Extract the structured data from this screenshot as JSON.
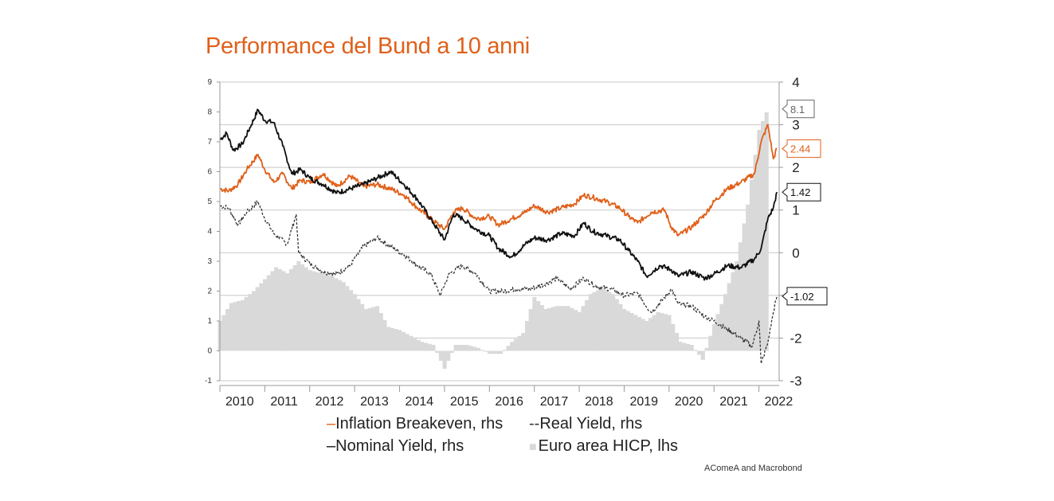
{
  "chart_data": {
    "type": "line",
    "title": "Performance del Bund a 10 anni",
    "source": "AComeA and Macrobond",
    "x_ticks": [
      "2010",
      "2011",
      "2012",
      "2013",
      "2014",
      "2015",
      "2016",
      "2017",
      "2018",
      "2019",
      "2020",
      "2021",
      "2022"
    ],
    "left_axis": {
      "ylim": [
        -1,
        9
      ],
      "ticks": [
        "9",
        "8",
        "7",
        "6",
        "5",
        "4",
        "3",
        "2",
        "1",
        "0",
        "-1"
      ]
    },
    "right_axis": {
      "ylim": [
        -3,
        4
      ],
      "ticks": [
        "4",
        "3",
        "2",
        "1",
        "0",
        "-1",
        "-2",
        "-3"
      ]
    },
    "legend": [
      {
        "label": "Inflation Breakeven, rhs",
        "marker": "–",
        "color": "#e0601a"
      },
      {
        "label": "Real Yield, rhs",
        "marker": "--",
        "color": "#333333"
      },
      {
        "label": "Nominal Yield, rhs",
        "marker": "–",
        "color": "#111111"
      },
      {
        "label": "Euro area HICP, lhs",
        "marker": "■",
        "color": "#d9d9d9"
      }
    ],
    "end_labels": [
      {
        "text": "8.1",
        "color": "#666666"
      },
      {
        "text": "2.44",
        "color": "#e0601a"
      },
      {
        "text": "1.42",
        "color": "#111111"
      },
      {
        "text": "-1.02",
        "color": "#111111"
      }
    ],
    "series": [
      {
        "name": "Euro area HICP, lhs",
        "axis": "left",
        "kind": "bar",
        "color": "#d9d9d9",
        "points": [
          [
            2010.0,
            1.0
          ],
          [
            2010.25,
            1.6
          ],
          [
            2010.5,
            1.7
          ],
          [
            2010.75,
            2.0
          ],
          [
            2011.0,
            2.4
          ],
          [
            2011.25,
            2.8
          ],
          [
            2011.5,
            2.6
          ],
          [
            2011.75,
            3.0
          ],
          [
            2012.0,
            2.7
          ],
          [
            2012.25,
            2.6
          ],
          [
            2012.5,
            2.5
          ],
          [
            2012.75,
            2.3
          ],
          [
            2013.0,
            1.9
          ],
          [
            2013.25,
            1.4
          ],
          [
            2013.5,
            1.5
          ],
          [
            2013.75,
            0.8
          ],
          [
            2014.0,
            0.7
          ],
          [
            2014.25,
            0.5
          ],
          [
            2014.5,
            0.3
          ],
          [
            2014.75,
            0.2
          ],
          [
            2015.0,
            -0.6
          ],
          [
            2015.25,
            0.2
          ],
          [
            2015.5,
            0.2
          ],
          [
            2015.75,
            0.1
          ],
          [
            2016.0,
            -0.1
          ],
          [
            2016.25,
            -0.1
          ],
          [
            2016.5,
            0.3
          ],
          [
            2016.75,
            0.6
          ],
          [
            2017.0,
            1.8
          ],
          [
            2017.25,
            1.4
          ],
          [
            2017.5,
            1.5
          ],
          [
            2017.75,
            1.5
          ],
          [
            2018.0,
            1.3
          ],
          [
            2018.25,
            1.9
          ],
          [
            2018.5,
            2.1
          ],
          [
            2018.75,
            1.9
          ],
          [
            2019.0,
            1.4
          ],
          [
            2019.25,
            1.2
          ],
          [
            2019.5,
            1.0
          ],
          [
            2019.75,
            1.3
          ],
          [
            2020.0,
            1.2
          ],
          [
            2020.25,
            0.3
          ],
          [
            2020.5,
            0.2
          ],
          [
            2020.75,
            -0.3
          ],
          [
            2021.0,
            0.9
          ],
          [
            2021.25,
            1.9
          ],
          [
            2021.5,
            3.0
          ],
          [
            2021.75,
            4.9
          ],
          [
            2022.0,
            7.4
          ],
          [
            2022.2,
            8.1
          ]
        ]
      },
      {
        "name": "Inflation Breakeven, rhs",
        "axis": "right",
        "kind": "line",
        "color": "#e0601a",
        "points": [
          [
            2010.0,
            1.5
          ],
          [
            2010.2,
            1.45
          ],
          [
            2010.4,
            1.6
          ],
          [
            2010.6,
            1.95
          ],
          [
            2010.85,
            2.3
          ],
          [
            2011.0,
            1.95
          ],
          [
            2011.2,
            1.65
          ],
          [
            2011.4,
            1.85
          ],
          [
            2011.6,
            1.5
          ],
          [
            2011.8,
            1.7
          ],
          [
            2012.0,
            1.65
          ],
          [
            2012.3,
            1.85
          ],
          [
            2012.6,
            1.55
          ],
          [
            2012.9,
            1.8
          ],
          [
            2013.2,
            1.55
          ],
          [
            2013.5,
            1.6
          ],
          [
            2013.8,
            1.5
          ],
          [
            2014.1,
            1.35
          ],
          [
            2014.4,
            1.05
          ],
          [
            2014.75,
            0.75
          ],
          [
            2015.0,
            0.55
          ],
          [
            2015.2,
            0.95
          ],
          [
            2015.4,
            1.05
          ],
          [
            2015.7,
            0.8
          ],
          [
            2016.0,
            0.85
          ],
          [
            2016.2,
            0.65
          ],
          [
            2016.5,
            0.8
          ],
          [
            2016.8,
            0.95
          ],
          [
            2017.0,
            1.1
          ],
          [
            2017.3,
            0.95
          ],
          [
            2017.6,
            1.05
          ],
          [
            2017.9,
            1.15
          ],
          [
            2018.1,
            1.35
          ],
          [
            2018.3,
            1.3
          ],
          [
            2018.6,
            1.2
          ],
          [
            2018.9,
            1.05
          ],
          [
            2019.1,
            0.85
          ],
          [
            2019.3,
            0.7
          ],
          [
            2019.6,
            0.95
          ],
          [
            2019.9,
            1.0
          ],
          [
            2020.05,
            0.6
          ],
          [
            2020.2,
            0.4
          ],
          [
            2020.5,
            0.6
          ],
          [
            2020.8,
            0.9
          ],
          [
            2021.0,
            1.2
          ],
          [
            2021.3,
            1.5
          ],
          [
            2021.6,
            1.65
          ],
          [
            2021.9,
            1.85
          ],
          [
            2022.05,
            2.6
          ],
          [
            2022.2,
            3.0
          ],
          [
            2022.32,
            2.2
          ],
          [
            2022.4,
            2.44
          ]
        ]
      },
      {
        "name": "Nominal Yield, rhs",
        "axis": "right",
        "kind": "line",
        "color": "#111111",
        "points": [
          [
            2010.0,
            2.65
          ],
          [
            2010.15,
            2.8
          ],
          [
            2010.3,
            2.4
          ],
          [
            2010.5,
            2.55
          ],
          [
            2010.7,
            3.0
          ],
          [
            2010.85,
            3.35
          ],
          [
            2011.0,
            3.1
          ],
          [
            2011.2,
            3.05
          ],
          [
            2011.4,
            2.5
          ],
          [
            2011.6,
            1.85
          ],
          [
            2011.8,
            1.95
          ],
          [
            2012.0,
            1.75
          ],
          [
            2012.3,
            1.6
          ],
          [
            2012.6,
            1.4
          ],
          [
            2012.9,
            1.5
          ],
          [
            2013.2,
            1.6
          ],
          [
            2013.5,
            1.75
          ],
          [
            2013.8,
            1.9
          ],
          [
            2014.1,
            1.6
          ],
          [
            2014.4,
            1.25
          ],
          [
            2014.75,
            0.7
          ],
          [
            2015.0,
            0.3
          ],
          [
            2015.2,
            0.9
          ],
          [
            2015.4,
            0.8
          ],
          [
            2015.7,
            0.55
          ],
          [
            2016.0,
            0.4
          ],
          [
            2016.2,
            0.1
          ],
          [
            2016.5,
            -0.1
          ],
          [
            2016.8,
            0.2
          ],
          [
            2017.0,
            0.35
          ],
          [
            2017.3,
            0.3
          ],
          [
            2017.6,
            0.45
          ],
          [
            2017.9,
            0.4
          ],
          [
            2018.1,
            0.7
          ],
          [
            2018.3,
            0.5
          ],
          [
            2018.6,
            0.4
          ],
          [
            2018.9,
            0.3
          ],
          [
            2019.1,
            0.05
          ],
          [
            2019.3,
            -0.2
          ],
          [
            2019.5,
            -0.55
          ],
          [
            2019.8,
            -0.3
          ],
          [
            2020.05,
            -0.4
          ],
          [
            2020.2,
            -0.55
          ],
          [
            2020.5,
            -0.45
          ],
          [
            2020.8,
            -0.6
          ],
          [
            2021.0,
            -0.5
          ],
          [
            2021.3,
            -0.3
          ],
          [
            2021.6,
            -0.35
          ],
          [
            2021.9,
            -0.15
          ],
          [
            2022.05,
            0.1
          ],
          [
            2022.2,
            0.8
          ],
          [
            2022.32,
            1.05
          ],
          [
            2022.4,
            1.42
          ]
        ]
      },
      {
        "name": "Real Yield, rhs",
        "axis": "right",
        "kind": "dashed",
        "color": "#333333",
        "points": [
          [
            2010.0,
            1.1
          ],
          [
            2010.2,
            1.05
          ],
          [
            2010.4,
            0.65
          ],
          [
            2010.6,
            0.95
          ],
          [
            2010.85,
            1.2
          ],
          [
            2011.0,
            0.8
          ],
          [
            2011.2,
            0.45
          ],
          [
            2011.5,
            0.2
          ],
          [
            2011.7,
            0.9
          ],
          [
            2011.75,
            0.0
          ],
          [
            2012.0,
            -0.25
          ],
          [
            2012.3,
            -0.45
          ],
          [
            2012.6,
            -0.5
          ],
          [
            2012.9,
            -0.3
          ],
          [
            2013.2,
            0.15
          ],
          [
            2013.5,
            0.35
          ],
          [
            2013.8,
            0.15
          ],
          [
            2014.1,
            -0.05
          ],
          [
            2014.4,
            -0.3
          ],
          [
            2014.7,
            -0.5
          ],
          [
            2014.9,
            -1.0
          ],
          [
            2015.1,
            -0.5
          ],
          [
            2015.4,
            -0.3
          ],
          [
            2015.7,
            -0.5
          ],
          [
            2016.0,
            -0.9
          ],
          [
            2016.3,
            -0.9
          ],
          [
            2016.6,
            -0.85
          ],
          [
            2016.9,
            -0.85
          ],
          [
            2017.2,
            -0.75
          ],
          [
            2017.5,
            -0.6
          ],
          [
            2017.8,
            -0.85
          ],
          [
            2018.1,
            -0.6
          ],
          [
            2018.4,
            -0.8
          ],
          [
            2018.7,
            -0.85
          ],
          [
            2019.0,
            -1.0
          ],
          [
            2019.3,
            -0.95
          ],
          [
            2019.6,
            -1.4
          ],
          [
            2019.9,
            -1.05
          ],
          [
            2020.05,
            -0.85
          ],
          [
            2020.2,
            -1.2
          ],
          [
            2020.5,
            -1.25
          ],
          [
            2020.8,
            -1.5
          ],
          [
            2021.0,
            -1.6
          ],
          [
            2021.3,
            -1.8
          ],
          [
            2021.6,
            -2.0
          ],
          [
            2021.85,
            -2.2
          ],
          [
            2022.0,
            -1.6
          ],
          [
            2022.05,
            -2.6
          ],
          [
            2022.2,
            -2.1
          ],
          [
            2022.32,
            -1.4
          ],
          [
            2022.4,
            -1.02
          ]
        ]
      }
    ]
  }
}
